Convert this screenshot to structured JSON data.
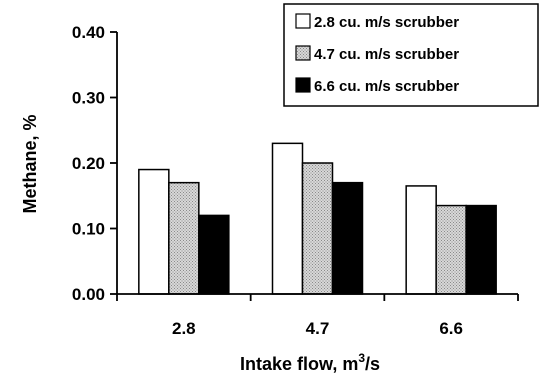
{
  "chart_data": {
    "type": "bar",
    "categories": [
      "2.8",
      "4.7",
      "6.6"
    ],
    "series": [
      {
        "name": "2.8 cu. m/s scrubber",
        "values": [
          0.19,
          0.23,
          0.165
        ],
        "color": "#ffffff",
        "pattern": "none"
      },
      {
        "name": "4.7 cu. m/s scrubber",
        "values": [
          0.17,
          0.2,
          0.135
        ],
        "color": "#c8c8c8",
        "pattern": "dots"
      },
      {
        "name": "6.6 cu. m/s scrubber",
        "values": [
          0.12,
          0.17,
          0.135
        ],
        "color": "#000000",
        "pattern": "none"
      }
    ],
    "xlabel_main": "Intake flow, m",
    "xlabel_sup": "3",
    "xlabel_tail": "/s",
    "ylabel": "Methane, %",
    "yticks": [
      "0.00",
      "0.10",
      "0.20",
      "0.30",
      "0.40"
    ],
    "ylim": [
      0,
      0.4
    ],
    "grid": false,
    "legend_position": "top-right"
  }
}
